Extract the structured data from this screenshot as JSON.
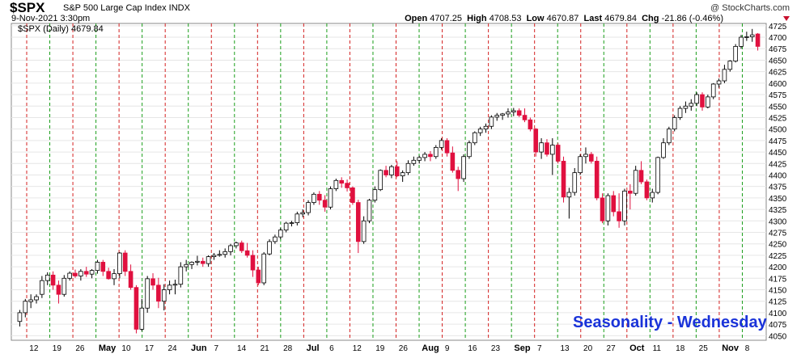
{
  "header": {
    "symbol": "$SPX",
    "description": "S&P 500 Large Cap Index INDX",
    "datetime": "9-Nov-2021 3:30pm",
    "open_label": "Open",
    "open": "4707.25",
    "high_label": "High",
    "high": "4708.53",
    "low_label": "Low",
    "low": "4670.87",
    "last_label": "Last",
    "last": "4679.84",
    "chg_label": "Chg",
    "chg": "-21.86 (-0.46%)",
    "brand": "@ StockCharts.com",
    "legend": "$SPX (Daily) 4679.84"
  },
  "annotation": "Seasonality - Wednesday",
  "colors": {
    "up": "#ffffff",
    "down": "#e0103f",
    "green_line": "#1a9e1a",
    "red_line": "#d42020",
    "text_blue": "#1a33d9"
  },
  "chart_data": {
    "type": "candlestick",
    "ylim": [
      4040,
      4730
    ],
    "y_ticks": [
      4050,
      4075,
      4100,
      4125,
      4150,
      4175,
      4200,
      4225,
      4250,
      4275,
      4300,
      4325,
      4350,
      4375,
      4400,
      4425,
      4450,
      4475,
      4500,
      4525,
      4550,
      4575,
      4600,
      4625,
      4650,
      4675,
      4700,
      4725
    ],
    "x_labels": [
      "12",
      "19",
      "26",
      "May",
      "10",
      "17",
      "24",
      "Jun",
      "7",
      "14",
      "21",
      "28",
      "Jul",
      "6",
      "12",
      "19",
      "26",
      "Aug",
      "9",
      "16",
      "23",
      "Sep",
      "7",
      "13",
      "20",
      "27",
      "Oct",
      "11",
      "18",
      "25",
      "Nov",
      "8"
    ],
    "candles": [
      [
        4081,
        4106,
        4070,
        4100
      ],
      [
        4100,
        4130,
        4090,
        4125
      ],
      [
        4124,
        4140,
        4110,
        4128
      ],
      [
        4128,
        4140,
        4120,
        4135
      ],
      [
        4140,
        4180,
        4132,
        4170
      ],
      [
        4170,
        4188,
        4160,
        4182
      ],
      [
        4182,
        4190,
        4150,
        4160
      ],
      [
        4160,
        4170,
        4120,
        4140
      ],
      [
        4140,
        4182,
        4135,
        4175
      ],
      [
        4175,
        4190,
        4170,
        4186
      ],
      [
        4186,
        4194,
        4176,
        4180
      ],
      [
        4180,
        4195,
        4170,
        4190
      ],
      [
        4190,
        4200,
        4178,
        4184
      ],
      [
        4184,
        4195,
        4175,
        4192
      ],
      [
        4192,
        4215,
        4185,
        4210
      ],
      [
        4210,
        4215,
        4180,
        4190
      ],
      [
        4190,
        4198,
        4172,
        4174
      ],
      [
        4174,
        4195,
        4160,
        4185
      ],
      [
        4185,
        4232,
        4175,
        4230
      ],
      [
        4230,
        4236,
        4180,
        4190
      ],
      [
        4190,
        4205,
        4150,
        4155
      ],
      [
        4155,
        4160,
        4055,
        4064
      ],
      [
        4064,
        4130,
        4060,
        4110
      ],
      [
        4110,
        4180,
        4100,
        4174
      ],
      [
        4174,
        4186,
        4150,
        4160
      ],
      [
        4160,
        4176,
        4110,
        4125
      ],
      [
        4125,
        4162,
        4105,
        4150
      ],
      [
        4150,
        4170,
        4140,
        4160
      ],
      [
        4160,
        4172,
        4140,
        4162
      ],
      [
        4162,
        4210,
        4155,
        4200
      ],
      [
        4200,
        4215,
        4190,
        4205
      ],
      [
        4205,
        4212,
        4195,
        4210
      ],
      [
        4210,
        4224,
        4203,
        4212
      ],
      [
        4212,
        4220,
        4200,
        4207
      ],
      [
        4207,
        4225,
        4200,
        4222
      ],
      [
        4222,
        4230,
        4215,
        4225
      ],
      [
        4225,
        4236,
        4222,
        4227
      ],
      [
        4227,
        4240,
        4220,
        4233
      ],
      [
        4233,
        4250,
        4225,
        4246
      ],
      [
        4246,
        4255,
        4240,
        4252
      ],
      [
        4252,
        4257,
        4230,
        4235
      ],
      [
        4235,
        4252,
        4220,
        4225
      ],
      [
        4225,
        4236,
        4178,
        4193
      ],
      [
        4193,
        4200,
        4160,
        4165
      ],
      [
        4165,
        4232,
        4160,
        4228
      ],
      [
        4228,
        4260,
        4225,
        4255
      ],
      [
        4255,
        4270,
        4250,
        4265
      ],
      [
        4265,
        4285,
        4260,
        4280
      ],
      [
        4280,
        4298,
        4275,
        4295
      ],
      [
        4295,
        4300,
        4288,
        4296
      ],
      [
        4296,
        4320,
        4290,
        4315
      ],
      [
        4315,
        4325,
        4308,
        4318
      ],
      [
        4318,
        4345,
        4312,
        4340
      ],
      [
        4340,
        4362,
        4335,
        4358
      ],
      [
        4358,
        4365,
        4335,
        4345
      ],
      [
        4345,
        4356,
        4320,
        4330
      ],
      [
        4330,
        4375,
        4325,
        4370
      ],
      [
        4370,
        4392,
        4365,
        4388
      ],
      [
        4388,
        4395,
        4372,
        4382
      ],
      [
        4382,
        4390,
        4364,
        4372
      ],
      [
        4372,
        4375,
        4335,
        4340
      ],
      [
        4340,
        4346,
        4230,
        4255
      ],
      [
        4255,
        4310,
        4250,
        4300
      ],
      [
        4300,
        4348,
        4295,
        4345
      ],
      [
        4345,
        4375,
        4340,
        4368
      ],
      [
        4368,
        4412,
        4365,
        4410
      ],
      [
        4410,
        4420,
        4395,
        4400
      ],
      [
        4400,
        4422,
        4393,
        4418
      ],
      [
        4418,
        4430,
        4395,
        4398
      ],
      [
        4398,
        4410,
        4385,
        4405
      ],
      [
        4405,
        4432,
        4400,
        4425
      ],
      [
        4425,
        4440,
        4420,
        4432
      ],
      [
        4432,
        4442,
        4425,
        4438
      ],
      [
        4438,
        4450,
        4430,
        4445
      ],
      [
        4445,
        4452,
        4430,
        4440
      ],
      [
        4440,
        4465,
        4435,
        4460
      ],
      [
        4460,
        4480,
        4455,
        4475
      ],
      [
        4475,
        4480,
        4440,
        4448
      ],
      [
        4448,
        4462,
        4405,
        4410
      ],
      [
        4410,
        4418,
        4365,
        4392
      ],
      [
        4392,
        4445,
        4385,
        4440
      ],
      [
        4440,
        4475,
        4435,
        4470
      ],
      [
        4470,
        4495,
        4465,
        4492
      ],
      [
        4492,
        4505,
        4485,
        4500
      ],
      [
        4500,
        4512,
        4492,
        4506
      ],
      [
        4506,
        4530,
        4500,
        4526
      ],
      [
        4526,
        4535,
        4518,
        4530
      ],
      [
        4530,
        4535,
        4520,
        4533
      ],
      [
        4533,
        4545,
        4525,
        4537
      ],
      [
        4537,
        4546,
        4528,
        4540
      ],
      [
        4540,
        4545,
        4526,
        4530
      ],
      [
        4530,
        4545,
        4515,
        4520
      ],
      [
        4520,
        4525,
        4495,
        4500
      ],
      [
        4500,
        4502,
        4440,
        4450
      ],
      [
        4450,
        4480,
        4435,
        4470
      ],
      [
        4470,
        4478,
        4440,
        4445
      ],
      [
        4445,
        4480,
        4400,
        4465
      ],
      [
        4465,
        4470,
        4425,
        4430
      ],
      [
        4430,
        4440,
        4340,
        4352
      ],
      [
        4352,
        4372,
        4305,
        4362
      ],
      [
        4362,
        4415,
        4355,
        4405
      ],
      [
        4405,
        4445,
        4400,
        4440
      ],
      [
        4440,
        4460,
        4425,
        4445
      ],
      [
        4445,
        4450,
        4425,
        4430
      ],
      [
        4430,
        4440,
        4345,
        4350
      ],
      [
        4350,
        4360,
        4295,
        4300
      ],
      [
        4300,
        4360,
        4290,
        4355
      ],
      [
        4355,
        4365,
        4310,
        4320
      ],
      [
        4320,
        4360,
        4285,
        4300
      ],
      [
        4300,
        4370,
        4290,
        4365
      ],
      [
        4365,
        4380,
        4325,
        4360
      ],
      [
        4360,
        4420,
        4355,
        4410
      ],
      [
        4410,
        4430,
        4380,
        4385
      ],
      [
        4385,
        4390,
        4345,
        4350
      ],
      [
        4350,
        4370,
        4340,
        4362
      ],
      [
        4362,
        4440,
        4358,
        4438
      ],
      [
        4438,
        4480,
        4435,
        4470
      ],
      [
        4470,
        4505,
        4465,
        4500
      ],
      [
        4500,
        4530,
        4495,
        4525
      ],
      [
        4525,
        4550,
        4520,
        4545
      ],
      [
        4545,
        4560,
        4535,
        4550
      ],
      [
        4550,
        4565,
        4540,
        4556
      ],
      [
        4556,
        4580,
        4550,
        4575
      ],
      [
        4575,
        4580,
        4540,
        4548
      ],
      [
        4548,
        4575,
        4545,
        4570
      ],
      [
        4570,
        4600,
        4565,
        4598
      ],
      [
        4598,
        4610,
        4590,
        4605
      ],
      [
        4605,
        4640,
        4600,
        4630
      ],
      [
        4630,
        4650,
        4625,
        4648
      ],
      [
        4648,
        4685,
        4645,
        4680
      ],
      [
        4680,
        4705,
        4675,
        4700
      ],
      [
        4700,
        4712,
        4692,
        4701
      ],
      [
        4701,
        4718,
        4690,
        4705
      ],
      [
        4707,
        4709,
        4671,
        4680
      ]
    ]
  }
}
